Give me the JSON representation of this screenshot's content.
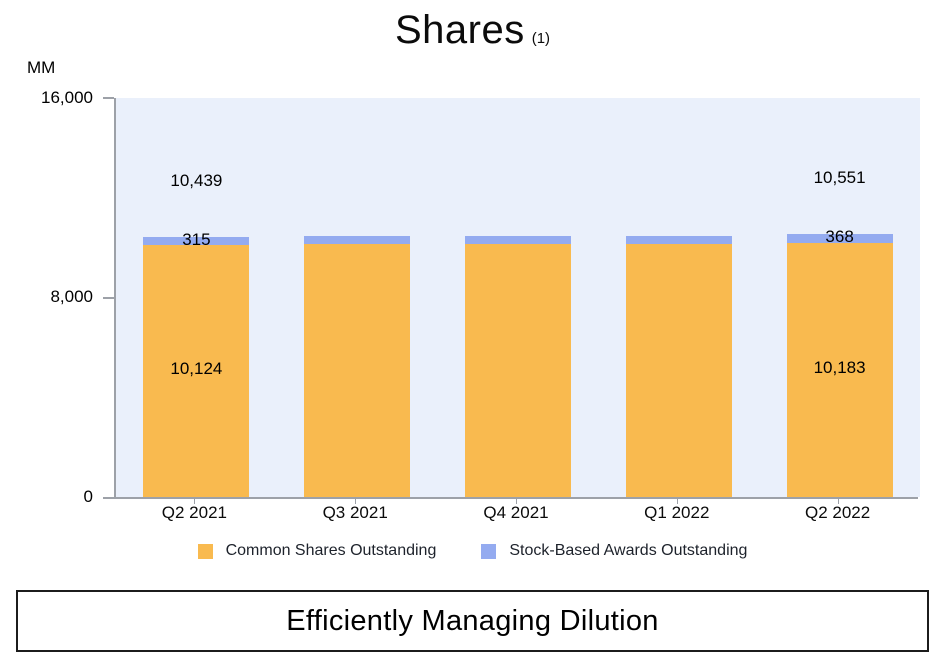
{
  "title": {
    "text": "Shares",
    "footnote_marker": "(1)"
  },
  "unit_label": "MM",
  "chart_data": {
    "type": "bar",
    "stacked": true,
    "title": "Shares (1)",
    "ylabel": "MM",
    "ylim": [
      0,
      16000
    ],
    "y_ticks": [
      "16,000",
      "8,000",
      "0"
    ],
    "grid": false,
    "legend_position": "bottom",
    "plot_bg": "#EAF0FB",
    "axis_color": "#9DA1A8",
    "categories": [
      "Q2 2021",
      "Q3 2021",
      "Q4 2021",
      "Q1 2022",
      "Q2 2022"
    ],
    "series": [
      {
        "name": "Common Shares Outstanding",
        "color": "#F9BA4F",
        "values": [
          10124,
          10130,
          10130,
          10130,
          10183
        ]
      },
      {
        "name": "Stock-Based Awards Outstanding",
        "color": "#94ABF0",
        "values": [
          315,
          320,
          320,
          320,
          368
        ]
      }
    ],
    "totals": [
      10439,
      10450,
      10450,
      10450,
      10551
    ],
    "data_labels": {
      "total": [
        "10,439",
        "",
        "",
        "",
        "10,551"
      ],
      "awards": [
        "315",
        "",
        "",
        "",
        "368"
      ],
      "common": [
        "10,124",
        "",
        "",
        "",
        "10,183"
      ]
    },
    "note": "middle three bars are unlabeled in source; values estimated from bar heights"
  },
  "legend": {
    "items": [
      {
        "label": "Common Shares Outstanding",
        "color": "#F9BA4F"
      },
      {
        "label": "Stock-Based Awards Outstanding",
        "color": "#94ABF0"
      }
    ]
  },
  "banner": {
    "text": "Efficiently Managing Dilution"
  }
}
